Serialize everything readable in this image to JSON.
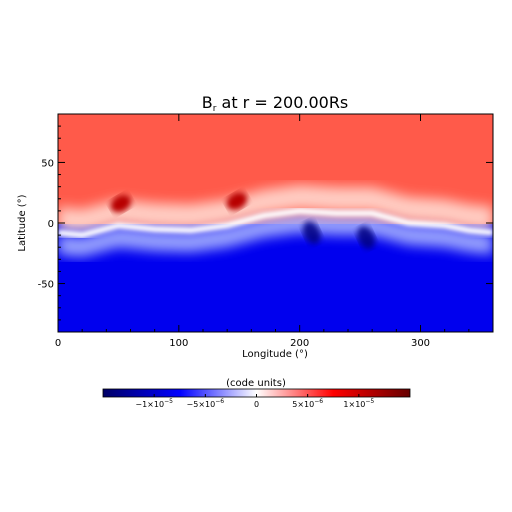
{
  "chart_data": {
    "type": "heatmap",
    "title": "B",
    "title_sub": "r",
    "title_rest": " at r = 200.00Rs",
    "xlabel": "Longitude (°)",
    "ylabel": "Latitude (°)",
    "xlim": [
      0,
      360
    ],
    "ylim": [
      -90,
      90
    ],
    "x_ticks": [
      0,
      100,
      200,
      300
    ],
    "y_ticks": [
      -50,
      0,
      50
    ],
    "colormap": [
      "#000066",
      "#0000ff",
      "#ffffff",
      "#ff0000",
      "#660000"
    ],
    "field": {
      "background_north": "#ff5a4a",
      "background_south": "#0000ee",
      "neutral_line_lon": [
        0,
        20,
        50,
        80,
        110,
        140,
        170,
        200,
        230,
        260,
        290,
        320,
        340,
        360
      ],
      "neutral_line_lat": [
        -8,
        -10,
        -2,
        -5,
        -6,
        -2,
        6,
        10,
        8,
        8,
        0,
        -2,
        -6,
        -8
      ],
      "north_max_patches": [
        {
          "lon": 52,
          "lat": 16
        },
        {
          "lon": 148,
          "lat": 18
        }
      ],
      "south_max_patches": [
        {
          "lon": 210,
          "lat": -8
        },
        {
          "lon": 255,
          "lat": -12
        }
      ]
    },
    "colorbar": {
      "label": "(code units)",
      "range": [
        -1.5e-05,
        1.5e-05
      ],
      "ticks": [
        {
          "value": -1e-05,
          "base": "−1×10",
          "exp": "−5"
        },
        {
          "value": -5e-06,
          "base": "−5×10",
          "exp": "−6"
        },
        {
          "value": 0,
          "base": "0",
          "exp": ""
        },
        {
          "value": 5e-06,
          "base": "5×10",
          "exp": "−6"
        },
        {
          "value": 1e-05,
          "base": "1×10",
          "exp": "−5"
        }
      ]
    }
  }
}
